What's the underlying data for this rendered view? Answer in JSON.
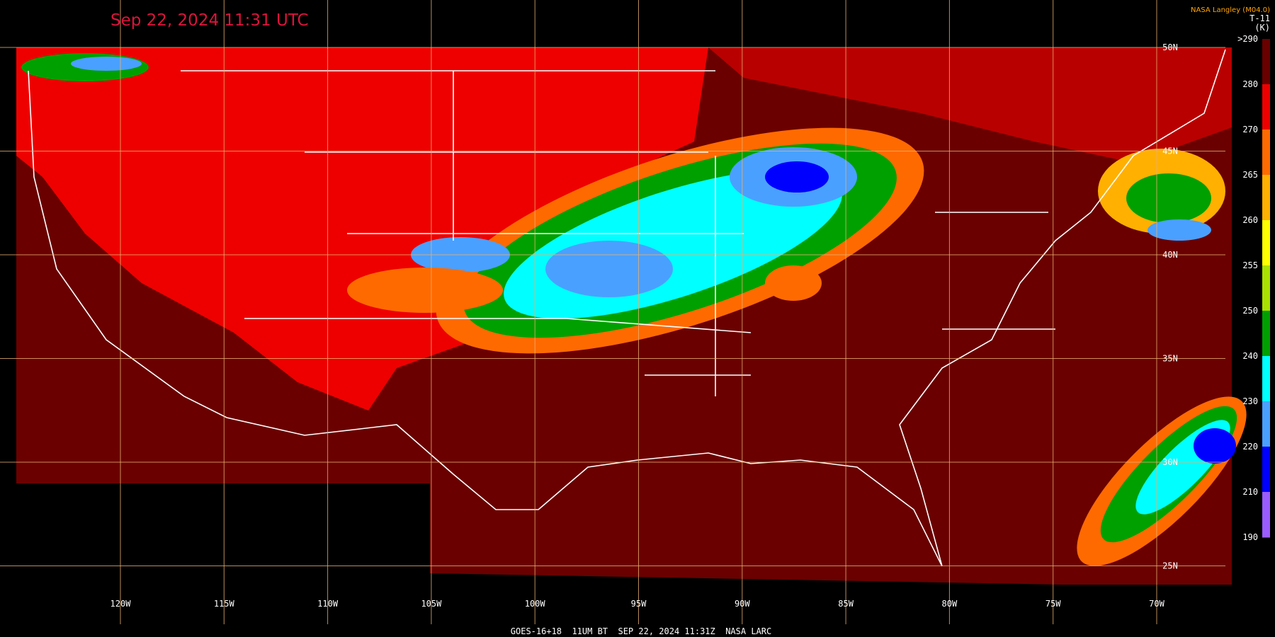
{
  "header": {
    "title": "Sep 22, 2024 11:31 UTC",
    "source": "NASA Langley (M04.0)"
  },
  "colorbar": {
    "title": "T-11",
    "unit": "(K)",
    "labels": [
      ">290",
      "280",
      "270",
      "265",
      "260",
      "255",
      "250",
      "240",
      "230",
      "220",
      "210",
      "190"
    ],
    "colors": [
      "#6a0000",
      "#ee0000",
      "#ff6a00",
      "#ffb000",
      "#ffff00",
      "#a8e000",
      "#00a000",
      "#00ffff",
      "#4aa0ff",
      "#0000ff",
      "#9a5cff"
    ]
  },
  "longitudes": [
    "120W",
    "115W",
    "110W",
    "105W",
    "100W",
    "95W",
    "90W",
    "85W",
    "80W",
    "75W",
    "70W"
  ],
  "latitudes": [
    "50N",
    "45N",
    "40N",
    "35N",
    "30N",
    "25N"
  ],
  "footer": "GOES-16+18  11UM BT  SEP 22, 2024 11:31Z  NASA LARC"
}
